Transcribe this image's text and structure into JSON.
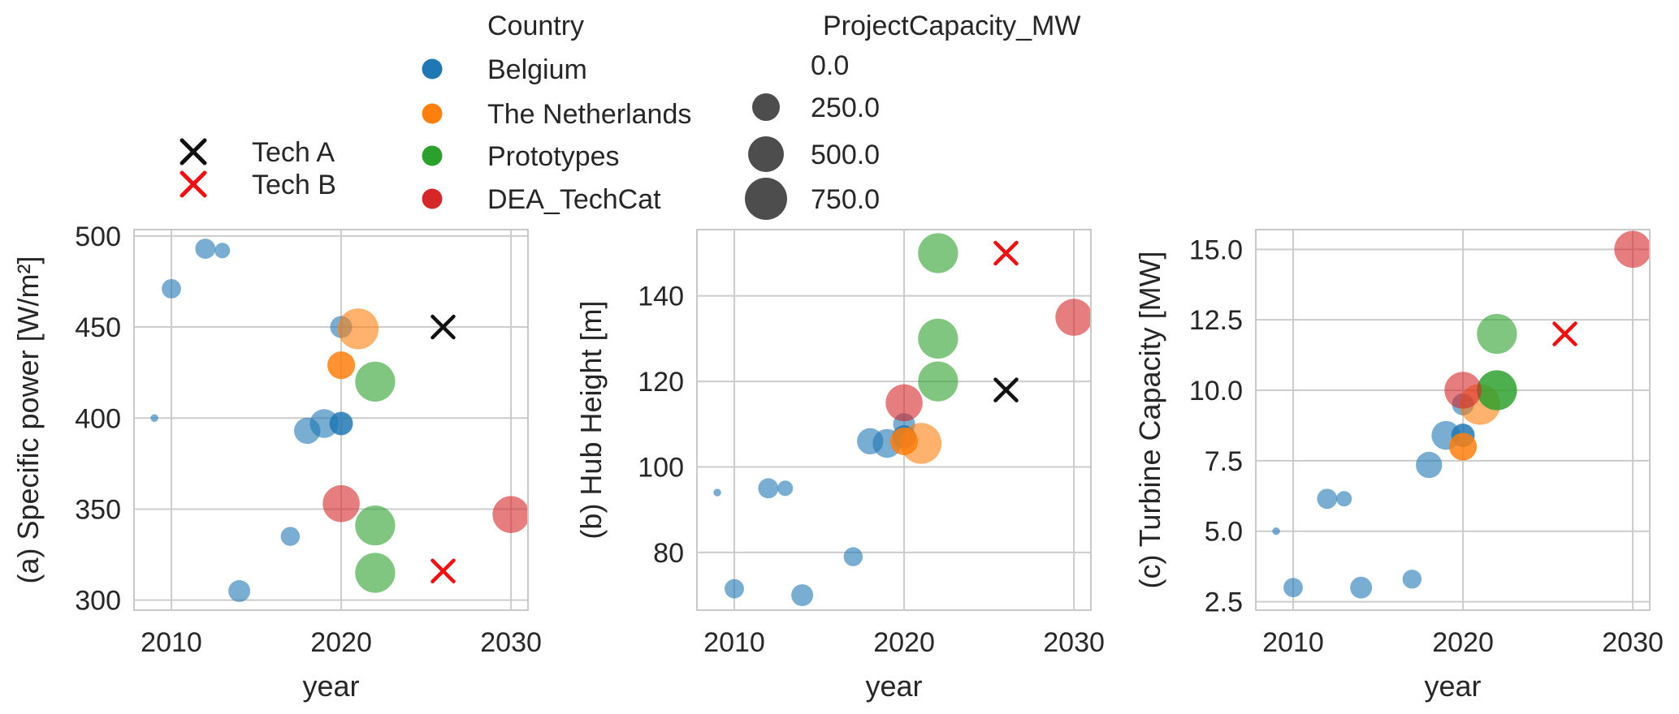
{
  "figure": {
    "background": "#ffffff"
  },
  "style": {
    "text_color": "#262626",
    "grid_color": "#cccccc",
    "spine_color": "#c9c9c9",
    "bubble_opacity": 0.6
  },
  "legends": {
    "tech": {
      "items": [
        {
          "label": "Tech A",
          "color": "#111111"
        },
        {
          "label": "Tech B",
          "color": "#ee1111"
        }
      ]
    },
    "country": {
      "title": "Country",
      "items": [
        {
          "label": "Belgium",
          "color": "#1f77b4"
        },
        {
          "label": "The Netherlands",
          "color": "#ff7f0e"
        },
        {
          "label": "Prototypes",
          "color": "#2ca02c"
        },
        {
          "label": "DEA_TechCat",
          "color": "#d62728"
        }
      ]
    },
    "size": {
      "title": "ProjectCapacity_MW",
      "marker_color": "#4d4d4d",
      "items": [
        {
          "label": "0.0",
          "radius": 0
        },
        {
          "label": "250.0",
          "radius": 17
        },
        {
          "label": "500.0",
          "radius": 22
        },
        {
          "label": "750.0",
          "radius": 26
        }
      ]
    }
  },
  "chart_data": [
    {
      "type": "scatter",
      "panel": "a",
      "ylabel": "(a) Specific power [W/m²]",
      "xlabel": "year",
      "xlim": [
        2007.8,
        2031.0
      ],
      "ylim": [
        294.5,
        503.5
      ],
      "xticks": [
        2010,
        2020,
        2030
      ],
      "yticks": [
        300,
        350,
        400,
        450,
        500
      ],
      "ytick_labels": [
        "300",
        "350",
        "400",
        "450",
        "500"
      ],
      "grid": true,
      "points_format": [
        "year",
        "value",
        "ProjectCapacity_MW"
      ],
      "series": [
        {
          "name": "Belgium",
          "color": "#1f77b4",
          "points": [
            [
              2009,
              400,
              30
            ],
            [
              2010,
              471,
              171
            ],
            [
              2012,
              493,
              185
            ],
            [
              2013,
              492,
              111
            ],
            [
              2014,
              305,
              216
            ],
            [
              2017,
              335,
              165
            ],
            [
              2018,
              393,
              309
            ],
            [
              2019,
              397,
              370
            ],
            [
              2020,
              397,
              235
            ],
            [
              2020,
              397,
              252
            ],
            [
              2020,
              450,
              219
            ]
          ]
        },
        {
          "name": "The Netherlands",
          "color": "#ff7f0e",
          "points": [
            [
              2020,
              429,
              340
            ],
            [
              2020,
              429,
              340
            ],
            [
              2021,
              449,
              731
            ]
          ]
        },
        {
          "name": "Prototypes",
          "color": "#2ca02c",
          "points": [
            [
              2022,
              420,
              700
            ],
            [
              2022,
              341,
              700
            ],
            [
              2022,
              315,
              700
            ]
          ]
        },
        {
          "name": "DEA_TechCat",
          "color": "#d62728",
          "points": [
            [
              2020,
              353,
              600
            ],
            [
              2030,
              347,
              600
            ]
          ]
        }
      ],
      "tech_markers": [
        {
          "label": "Tech A",
          "color": "#111111",
          "x": 2026,
          "y": 450
        },
        {
          "label": "Tech B",
          "color": "#ee1111",
          "x": 2026,
          "y": 316
        }
      ]
    },
    {
      "type": "scatter",
      "panel": "b",
      "ylabel": "(b) Hub Height [m]",
      "xlabel": "year",
      "xlim": [
        2007.8,
        2031.0
      ],
      "ylim": [
        66.5,
        155.5
      ],
      "xticks": [
        2010,
        2020,
        2030
      ],
      "yticks": [
        80,
        100,
        120,
        140
      ],
      "ytick_labels": [
        "80",
        "100",
        "120",
        "140"
      ],
      "grid": true,
      "points_format": [
        "year",
        "value",
        "ProjectCapacity_MW"
      ],
      "series": [
        {
          "name": "Belgium",
          "color": "#1f77b4",
          "points": [
            [
              2009,
              94,
              30
            ],
            [
              2010,
              71.5,
              171
            ],
            [
              2012,
              95,
              185
            ],
            [
              2013,
              95,
              111
            ],
            [
              2014,
              70,
              216
            ],
            [
              2017,
              79,
              165
            ],
            [
              2018,
              106,
              309
            ],
            [
              2019,
              105.5,
              370
            ],
            [
              2020,
              107,
              235
            ],
            [
              2020,
              107,
              252
            ],
            [
              2020,
              110,
              219
            ]
          ]
        },
        {
          "name": "The Netherlands",
          "color": "#ff7f0e",
          "points": [
            [
              2020,
              106,
              340
            ],
            [
              2020,
              106,
              340
            ],
            [
              2021,
              105.5,
              731
            ]
          ]
        },
        {
          "name": "Prototypes",
          "color": "#2ca02c",
          "points": [
            [
              2022,
              130,
              700
            ],
            [
              2022,
              120,
              700
            ],
            [
              2022,
              150,
              700
            ]
          ]
        },
        {
          "name": "DEA_TechCat",
          "color": "#d62728",
          "points": [
            [
              2020,
              115,
              600
            ],
            [
              2030,
              135,
              600
            ]
          ]
        }
      ],
      "tech_markers": [
        {
          "label": "Tech A",
          "color": "#111111",
          "x": 2026,
          "y": 118
        },
        {
          "label": "Tech B",
          "color": "#ee1111",
          "x": 2026,
          "y": 150
        }
      ]
    },
    {
      "type": "scatter",
      "panel": "c",
      "ylabel": "(c) Turbine Capacity [MW]",
      "xlabel": "year",
      "xlim": [
        2007.8,
        2031.0
      ],
      "ylim": [
        2.2,
        15.7
      ],
      "xticks": [
        2010,
        2020,
        2030
      ],
      "yticks": [
        2.5,
        5.0,
        7.5,
        10.0,
        12.5,
        15.0
      ],
      "ytick_labels": [
        "2.5",
        "5.0",
        "7.5",
        "10.0",
        "12.5",
        "15.0"
      ],
      "grid": true,
      "points_format": [
        "year",
        "value",
        "ProjectCapacity_MW"
      ],
      "series": [
        {
          "name": "Belgium",
          "color": "#1f77b4",
          "points": [
            [
              2009,
              5.0,
              30
            ],
            [
              2010,
              3.0,
              171
            ],
            [
              2012,
              6.15,
              185
            ],
            [
              2013,
              6.15,
              111
            ],
            [
              2014,
              3.0,
              216
            ],
            [
              2017,
              3.3,
              165
            ],
            [
              2018,
              7.35,
              309
            ],
            [
              2019,
              8.4,
              370
            ],
            [
              2020,
              8.4,
              235
            ],
            [
              2020,
              8.4,
              252
            ],
            [
              2020,
              9.5,
              219
            ]
          ]
        },
        {
          "name": "The Netherlands",
          "color": "#ff7f0e",
          "points": [
            [
              2020,
              8.0,
              340
            ],
            [
              2020,
              8.0,
              340
            ],
            [
              2021,
              9.5,
              731
            ]
          ]
        },
        {
          "name": "Prototypes",
          "color": "#2ca02c",
          "points": [
            [
              2022,
              10.0,
              700
            ],
            [
              2022,
              10.0,
              700
            ],
            [
              2022,
              12.0,
              700
            ]
          ]
        },
        {
          "name": "DEA_TechCat",
          "color": "#d62728",
          "points": [
            [
              2020,
              10.0,
              600
            ],
            [
              2030,
              15.0,
              600
            ]
          ]
        }
      ],
      "tech_markers": [
        {
          "label": "Tech B",
          "color": "#ee1111",
          "x": 2026,
          "y": 12.0
        }
      ]
    }
  ]
}
